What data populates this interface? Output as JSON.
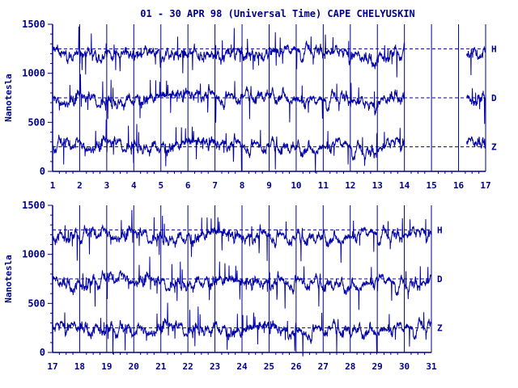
{
  "title": "01 - 30 APR 98 (Universal Time) CAPE CHELYUSKIN",
  "trace_color": "#0000aa",
  "axis_color": "#00008b",
  "chart_data": [
    {
      "type": "line",
      "ylabel": "Nanotesla",
      "ylim": [
        0,
        1500
      ],
      "yticks": [
        0,
        500,
        1000,
        1500
      ],
      "xlim": [
        1,
        17
      ],
      "xticks": [
        1,
        2,
        3,
        4,
        5,
        6,
        7,
        8,
        9,
        10,
        11,
        12,
        13,
        14,
        15,
        16,
        17
      ],
      "data_until": 14,
      "data_resumes": 16.3,
      "grid": true,
      "baselines": [
        {
          "name": "H",
          "value": 1250
        },
        {
          "name": "D",
          "value": 750
        },
        {
          "name": "Z",
          "value": 250
        }
      ],
      "series": [
        {
          "name": "H",
          "values": [
            1230,
            1200,
            1210,
            1200,
            1180,
            1210,
            1190,
            1200,
            1220,
            1250,
            1200,
            1150,
            1220,
            1160,
            1200,
            1180
          ]
        },
        {
          "name": "D",
          "values": [
            730,
            740,
            720,
            760,
            740,
            780,
            750,
            760,
            800,
            700,
            780,
            650,
            800,
            780,
            760,
            740
          ]
        },
        {
          "name": "Z",
          "values": [
            270,
            260,
            280,
            270,
            270,
            270,
            270,
            260,
            240,
            260,
            280,
            200,
            300,
            300,
            320,
            290
          ]
        }
      ]
    },
    {
      "type": "line",
      "ylabel": "Nanotesla",
      "ylim": [
        0,
        1500
      ],
      "yticks": [
        0,
        500,
        1000,
        1500
      ],
      "xlim": [
        17,
        31
      ],
      "xticks": [
        17,
        18,
        19,
        20,
        21,
        22,
        23,
        24,
        25,
        26,
        27,
        28,
        29,
        30,
        31
      ],
      "data_until": 31,
      "data_resumes": 31,
      "grid": true,
      "baselines": [
        {
          "name": "H",
          "value": 1250
        },
        {
          "name": "D",
          "value": 750
        },
        {
          "name": "Z",
          "value": 250
        }
      ],
      "series": [
        {
          "name": "H",
          "values": [
            1200,
            1190,
            1210,
            1200,
            1180,
            1190,
            1200,
            1150,
            1200,
            1150,
            1180,
            1200,
            1220,
            1200,
            1220
          ]
        },
        {
          "name": "D",
          "values": [
            720,
            700,
            740,
            760,
            700,
            720,
            760,
            680,
            700,
            720,
            690,
            700,
            740,
            700,
            720
          ]
        },
        {
          "name": "Z",
          "values": [
            270,
            260,
            250,
            200,
            260,
            240,
            280,
            200,
            250,
            180,
            240,
            220,
            260,
            240,
            300
          ]
        }
      ]
    }
  ]
}
